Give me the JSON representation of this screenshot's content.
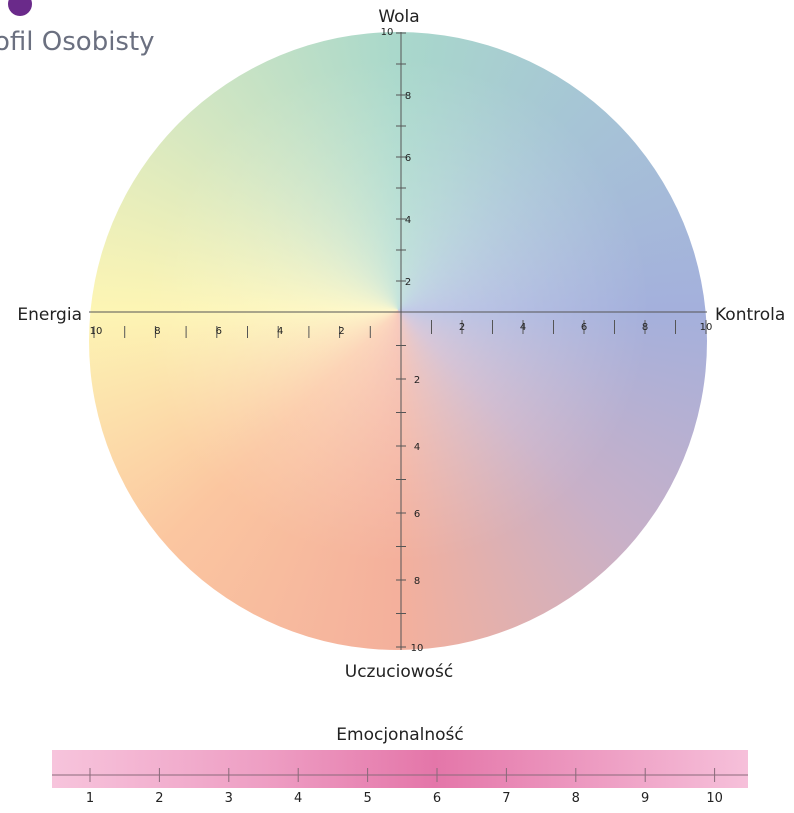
{
  "header": {
    "title": "ofil Osobisty"
  },
  "wheel": {
    "top": {
      "label": "Wola",
      "ticks": [
        2,
        4,
        6,
        8,
        10
      ]
    },
    "right": {
      "label": "Kontrola",
      "ticks": [
        2,
        4,
        6,
        8,
        10
      ]
    },
    "bottom": {
      "label": "Uczuciowość",
      "ticks": [
        2,
        4,
        6,
        8,
        10
      ]
    },
    "left": {
      "label": "Energia",
      "ticks": [
        2,
        4,
        6,
        8,
        10
      ]
    }
  },
  "scale": {
    "label": "Emocjonalność",
    "ticks": [
      1,
      2,
      3,
      4,
      5,
      6,
      7,
      8,
      9,
      10
    ]
  }
}
